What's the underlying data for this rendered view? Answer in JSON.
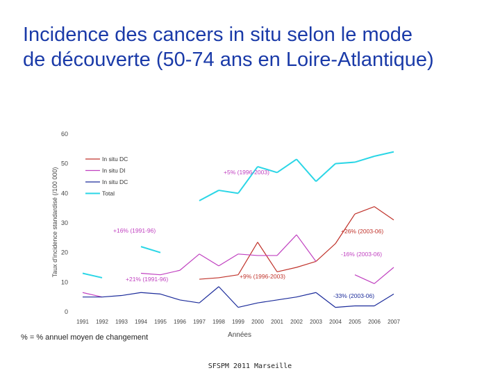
{
  "title_line1": "Incidence des cancers in situ selon le mode",
  "title_line2": "de découverte (50-74 ans en Loire-Atlantique)",
  "footnote": "% = % annuel moyen de changement",
  "footer": "SFSPM 2011 Marseille",
  "colors": {
    "title": "#1a3aa8",
    "dc_red": "#c0322a",
    "di_magenta": "#c040c0",
    "dc_blue": "#1a2a9a",
    "total_cyan": "#2ad6e6"
  },
  "chart_data": {
    "type": "line",
    "xlabel": "Années",
    "ylabel": "Taux d'incidence standardisé (/100 000)",
    "ylim": [
      0,
      60
    ],
    "yticks": [
      0,
      10,
      20,
      30,
      40,
      50,
      60
    ],
    "x": [
      "1991",
      "1992",
      "1993",
      "1994",
      "1995",
      "1996",
      "1997",
      "1998",
      "1999",
      "2000",
      "2001",
      "2002",
      "2003",
      "2004",
      "2005",
      "2006",
      "2007"
    ],
    "series": [
      {
        "name": "In situ DC",
        "color": "#c0322a",
        "values": [
          null,
          null,
          null,
          null,
          null,
          null,
          11,
          11.5,
          12.5,
          23.5,
          13.5,
          15,
          17,
          23,
          33,
          35.5,
          31
        ]
      },
      {
        "name": "In situ DI",
        "color": "#c040c0",
        "values": [
          6.5,
          5,
          null,
          13,
          12.5,
          14,
          19.5,
          15.5,
          19.5,
          19,
          19,
          26,
          17,
          null,
          12.5,
          9.5,
          15
        ]
      },
      {
        "name": "In situ DC",
        "color": "#1a2a9a",
        "values": [
          5,
          5,
          5.5,
          6.5,
          6,
          4,
          3,
          8.5,
          1.5,
          3,
          4,
          5,
          6.5,
          1.5,
          2,
          2,
          6
        ]
      },
      {
        "name": "Total",
        "color": "#2ad6e6",
        "values": [
          13,
          11.5,
          null,
          22,
          20,
          null,
          37.5,
          41,
          40,
          49,
          47,
          51.5,
          44,
          50,
          50.5,
          52.5,
          54
        ]
      }
    ],
    "annotations": [
      {
        "text": "+5% (1996-2003)",
        "color": "#c040c0"
      },
      {
        "text": "+16% (1991-96)",
        "color": "#c040c0"
      },
      {
        "text": "+26% (2003-06)",
        "color": "#c0322a"
      },
      {
        "text": "-16% (2003-06)",
        "color": "#c040c0"
      },
      {
        "text": "+21% (1991-96)",
        "color": "#c040c0"
      },
      {
        "text": "+9% (1996-2003)",
        "color": "#c0322a"
      },
      {
        "text": "-33% (2003-06)",
        "color": "#1a2a9a"
      }
    ]
  }
}
